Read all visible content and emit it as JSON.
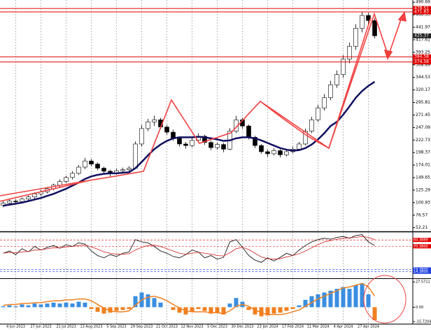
{
  "chart_data": [
    {
      "type": "candlestick",
      "categories": [
        null,
        null,
        "4 Jun 2023",
        null,
        null,
        null,
        "27 Jun 2023",
        null,
        null,
        null,
        "21 Jul 2023",
        null,
        null,
        null,
        "13 Aug 2023",
        null,
        null,
        null,
        "5 Sep 2023",
        null,
        null,
        null,
        "29 Sep 2023",
        null,
        null,
        null,
        "21 Oct 2023",
        null,
        null,
        null,
        "12 Nov 2023",
        null,
        null,
        null,
        "5 Dec 2023",
        null,
        null,
        null,
        "30 Dec 2023",
        null,
        null,
        null,
        "23 Jan 2024",
        null,
        null,
        null,
        "17 Feb 2024",
        null,
        null,
        null,
        "11 Mar 2024",
        null,
        null,
        null,
        "4 Apr 2024",
        null,
        null,
        null,
        "27 Apr 2024",
        null
      ],
      "ohlc": [
        [
          96,
          104,
          92,
          100
        ],
        [
          100,
          108,
          97,
          104
        ],
        [
          104,
          107,
          99,
          103
        ],
        [
          103,
          111,
          100,
          108
        ],
        [
          108,
          115,
          105,
          112
        ],
        [
          112,
          121,
          109,
          118
        ],
        [
          118,
          126,
          114,
          122
        ],
        [
          122,
          131,
          119,
          128
        ],
        [
          128,
          138,
          125,
          135
        ],
        [
          135,
          146,
          131,
          142
        ],
        [
          142,
          153,
          139,
          150
        ],
        [
          150,
          162,
          146,
          158
        ],
        [
          158,
          174,
          155,
          170
        ],
        [
          170,
          188,
          166,
          182
        ],
        [
          182,
          186,
          172,
          176
        ],
        [
          176,
          179,
          164,
          168
        ],
        [
          168,
          171,
          158,
          162
        ],
        [
          162,
          165,
          152,
          158
        ],
        [
          158,
          167,
          155,
          163
        ],
        [
          163,
          169,
          160,
          165
        ],
        [
          165,
          172,
          161,
          168
        ],
        [
          168,
          220,
          166,
          215
        ],
        [
          215,
          252,
          210,
          245
        ],
        [
          245,
          264,
          240,
          258
        ],
        [
          258,
          270,
          250,
          262
        ],
        [
          262,
          266,
          244,
          248
        ],
        [
          248,
          252,
          233,
          238
        ],
        [
          238,
          243,
          221,
          226
        ],
        [
          226,
          229,
          210,
          215
        ],
        [
          215,
          219,
          206,
          212
        ],
        [
          212,
          227,
          209,
          222
        ],
        [
          222,
          236,
          218,
          230
        ],
        [
          230,
          233,
          213,
          218
        ],
        [
          218,
          221,
          203,
          208
        ],
        [
          208,
          218,
          204,
          214
        ],
        [
          214,
          217,
          199,
          205
        ],
        [
          205,
          246,
          203,
          240
        ],
        [
          240,
          270,
          236,
          262
        ],
        [
          262,
          266,
          245,
          250
        ],
        [
          250,
          253,
          224,
          228
        ],
        [
          228,
          231,
          207,
          212
        ],
        [
          212,
          215,
          196,
          200
        ],
        [
          200,
          204,
          190,
          196
        ],
        [
          196,
          207,
          193,
          202
        ],
        [
          202,
          205,
          189,
          194
        ],
        [
          194,
          204,
          191,
          200
        ],
        [
          200,
          210,
          197,
          205
        ],
        [
          205,
          219,
          202,
          215
        ],
        [
          215,
          245,
          212,
          240
        ],
        [
          240,
          268,
          236,
          262
        ],
        [
          262,
          291,
          258,
          285
        ],
        [
          285,
          312,
          280,
          305
        ],
        [
          305,
          338,
          300,
          330
        ],
        [
          330,
          358,
          324,
          350
        ],
        [
          350,
          388,
          344,
          380
        ],
        [
          380,
          412,
          372,
          405
        ],
        [
          405,
          448,
          398,
          440
        ],
        [
          440,
          472,
          432,
          465
        ],
        [
          465,
          470,
          445,
          455
        ],
        [
          455,
          460,
          420,
          425.37
        ]
      ],
      "series": [
        {
          "color": "#101060",
          "values": [
            95,
            97,
            99,
            101,
            104,
            107,
            110,
            114,
            118,
            123,
            128,
            134,
            140,
            147,
            152,
            155,
            157,
            158,
            158,
            159,
            160,
            168,
            180,
            193,
            205,
            214,
            221,
            226,
            228,
            228,
            228,
            229,
            228,
            226,
            224,
            221,
            222,
            226,
            228,
            228,
            226,
            222,
            217,
            212,
            207,
            204,
            202,
            203,
            207,
            214,
            224,
            236,
            250,
            258,
            272,
            288,
            305,
            318,
            328,
            336
          ]
        }
      ],
      "hlines": [
        478.51,
        471.83,
        384.58,
        374.58
      ],
      "hline_color": "#e00000",
      "ylim": [
        45,
        495
      ],
      "yticks": [
        52.21,
        76.57,
        100.93,
        125.29,
        149.65,
        174.01,
        198.37,
        222.73,
        247.09,
        271.45,
        295.81,
        320.17,
        344.53,
        368.89,
        393.25,
        417.61,
        441.97,
        466.33,
        490.69
      ]
    },
    {
      "type": "line",
      "series": [
        {
          "color": "#000000",
          "values": [
            55,
            60,
            52,
            65,
            58,
            70,
            62,
            68,
            72,
            66,
            74,
            70,
            78,
            75,
            60,
            50,
            45,
            52,
            48,
            55,
            58,
            85,
            80,
            78,
            70,
            60,
            55,
            48,
            45,
            52,
            62,
            58,
            45,
            50,
            42,
            46,
            80,
            85,
            68,
            50,
            40,
            35,
            45,
            38,
            46,
            55,
            50,
            62,
            72,
            80,
            85,
            88,
            86,
            90,
            92,
            88,
            94,
            96,
            80,
            72
          ]
        },
        {
          "color": "#d02020",
          "values": [
            55,
            57,
            56,
            58,
            59,
            62,
            63,
            65,
            67,
            67,
            69,
            70,
            72,
            73,
            69,
            64,
            58,
            55,
            53,
            53,
            54,
            62,
            68,
            72,
            73,
            70,
            65,
            60,
            55,
            53,
            55,
            57,
            55,
            53,
            50,
            49,
            56,
            65,
            68,
            63,
            55,
            47,
            43,
            42,
            43,
            47,
            50,
            54,
            60,
            67,
            74,
            80,
            83,
            86,
            88,
            89,
            90,
            92,
            90,
            85
          ]
        }
      ],
      "levels": [
        {
          "value": 84.3889,
          "color": "#e00000"
        },
        {
          "value": 70.38,
          "label": "70.3800",
          "color": "#e00000"
        },
        {
          "value": 19.38,
          "label": "19.3800",
          "color": "#2040e0"
        },
        {
          "value": 14.38,
          "label": "14.3800",
          "color": "#2040e0"
        }
      ],
      "ylim": [
        0,
        100
      ]
    },
    {
      "type": "bar",
      "color": "#3a8ee0",
      "values": [
        1,
        2,
        1,
        3,
        2,
        4,
        3,
        4,
        5,
        4,
        5,
        4,
        6,
        5,
        -2,
        -5,
        -7,
        -6,
        -4,
        -3,
        -2,
        12,
        16,
        14,
        10,
        5,
        0,
        -3,
        -6,
        -8,
        -5,
        -2,
        -4,
        -7,
        -6,
        -8,
        4,
        10,
        6,
        -3,
        -8,
        -10,
        -9,
        -7,
        -6,
        -4,
        -2,
        2,
        8,
        12,
        14,
        16,
        18,
        20,
        22,
        20,
        24,
        26,
        14,
        -14
      ],
      "signal": {
        "color": "#f08020",
        "values": [
          2,
          3,
          3,
          4,
          4,
          5,
          5,
          6,
          7,
          7,
          8,
          8,
          9,
          9,
          7,
          3,
          -1,
          -4,
          -5,
          -5,
          -4,
          2,
          8,
          11,
          12,
          10,
          7,
          3,
          -1,
          -4,
          -5,
          -5,
          -5,
          -6,
          -6,
          -7,
          -4,
          1,
          3,
          1,
          -3,
          -6,
          -8,
          -8,
          -8,
          -7,
          -5,
          -3,
          1,
          5,
          9,
          12,
          15,
          18,
          21,
          22,
          24,
          26,
          22,
          12
        ]
      },
      "ylim": [
        -18,
        30
      ],
      "yticks": [
        27.5711,
        {
          "value": 0,
          "label": "0.00"
        },
        -15.7204
      ]
    }
  ]
}
